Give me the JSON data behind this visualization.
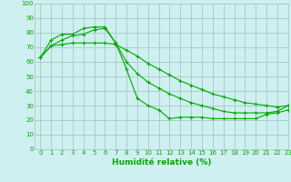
{
  "xlabel": "Humidité relative (%)",
  "background_color": "#cff0f0",
  "grid_color": "#a8c8c8",
  "line_color": "#00aa00",
  "series": [
    {
      "x": [
        0,
        1,
        2,
        3,
        4,
        5,
        6,
        7,
        8,
        9,
        10,
        11,
        12,
        13,
        14,
        15,
        16,
        17,
        18,
        19,
        20,
        21,
        22,
        23
      ],
      "y": [
        63,
        71,
        75,
        78,
        79,
        82,
        83,
        73,
        55,
        35,
        30,
        27,
        21,
        22,
        22,
        22,
        21,
        21,
        21,
        21,
        21,
        24,
        25,
        27
      ]
    },
    {
      "x": [
        0,
        1,
        2,
        3,
        4,
        5,
        6,
        7,
        8,
        9,
        10,
        11,
        12,
        13,
        14,
        15,
        16,
        17,
        18,
        19,
        20,
        21,
        22,
        23
      ],
      "y": [
        63,
        75,
        79,
        79,
        83,
        84,
        84,
        73,
        60,
        52,
        46,
        42,
        38,
        35,
        32,
        30,
        28,
        26,
        25,
        25,
        25,
        25,
        26,
        30
      ]
    },
    {
      "x": [
        0,
        1,
        2,
        3,
        4,
        5,
        6,
        7,
        8,
        9,
        10,
        11,
        12,
        13,
        14,
        15,
        16,
        17,
        18,
        19,
        20,
        21,
        22,
        23
      ],
      "y": [
        63,
        71,
        72,
        73,
        73,
        73,
        73,
        72,
        68,
        64,
        59,
        55,
        51,
        47,
        44,
        41,
        38,
        36,
        34,
        32,
        31,
        30,
        29,
        30
      ]
    }
  ],
  "xlim": [
    -0.5,
    23
  ],
  "ylim": [
    0,
    100
  ],
  "xticks": [
    0,
    1,
    2,
    3,
    4,
    5,
    6,
    7,
    8,
    9,
    10,
    11,
    12,
    13,
    14,
    15,
    16,
    17,
    18,
    19,
    20,
    21,
    22,
    23
  ],
  "yticks": [
    0,
    10,
    20,
    30,
    40,
    50,
    60,
    70,
    80,
    90,
    100
  ],
  "tick_fontsize": 5.0,
  "label_fontsize": 6.5
}
